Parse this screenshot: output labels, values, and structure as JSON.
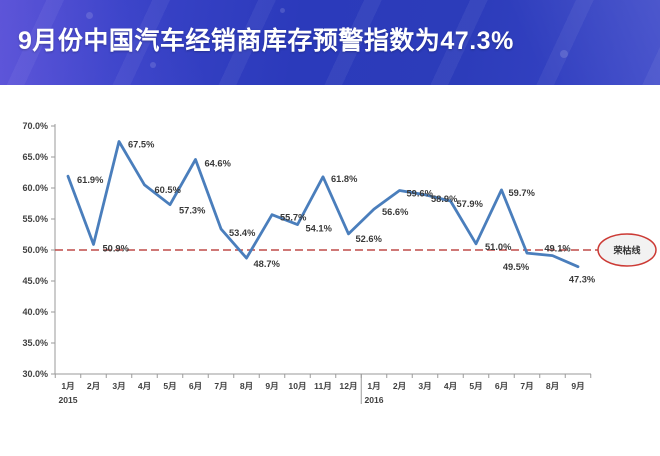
{
  "header": {
    "title": "9月份中国汽车经销商库存预警指数为47.3%",
    "bg_colors": [
      "#544fd2",
      "#2b3abb",
      "#3945c8"
    ],
    "text_color": "#ffffff"
  },
  "chart_data": {
    "type": "line",
    "title": "",
    "categories": [
      "1月",
      "2月",
      "3月",
      "4月",
      "5月",
      "6月",
      "7月",
      "8月",
      "9月",
      "10月",
      "11月",
      "12月",
      "1月",
      "2月",
      "3月",
      "4月",
      "5月",
      "6月",
      "7月",
      "8月",
      "9月"
    ],
    "year_labels": [
      {
        "text": "2015",
        "at_index": 0
      },
      {
        "text": "2016",
        "at_index": 12
      }
    ],
    "series": [
      {
        "name": "库存预警指数",
        "values": [
          61.9,
          50.9,
          67.5,
          60.5,
          57.3,
          64.6,
          53.4,
          48.7,
          55.7,
          54.1,
          61.8,
          52.6,
          56.6,
          59.6,
          58.9,
          57.9,
          51.0,
          59.7,
          49.5,
          49.1,
          47.3
        ],
        "color": "#4a7ebc"
      }
    ],
    "data_label_format": "percent_1dp",
    "ylim": [
      30,
      70
    ],
    "ytick_step": 5,
    "ytick_labels": [
      "30.0%",
      "35.0%",
      "40.0%",
      "45.0%",
      "50.0%",
      "55.0%",
      "60.0%",
      "65.0%",
      "70.0%"
    ],
    "grid": false,
    "legend": "none",
    "reference_line": {
      "value": 50.0,
      "label": "荣枯线",
      "line_color": "#bf4b48",
      "badge_fill": "#f2f2f2",
      "badge_border": "#cc3a35"
    },
    "axis_color": "#9a9a9a",
    "label_color": "#404040"
  }
}
